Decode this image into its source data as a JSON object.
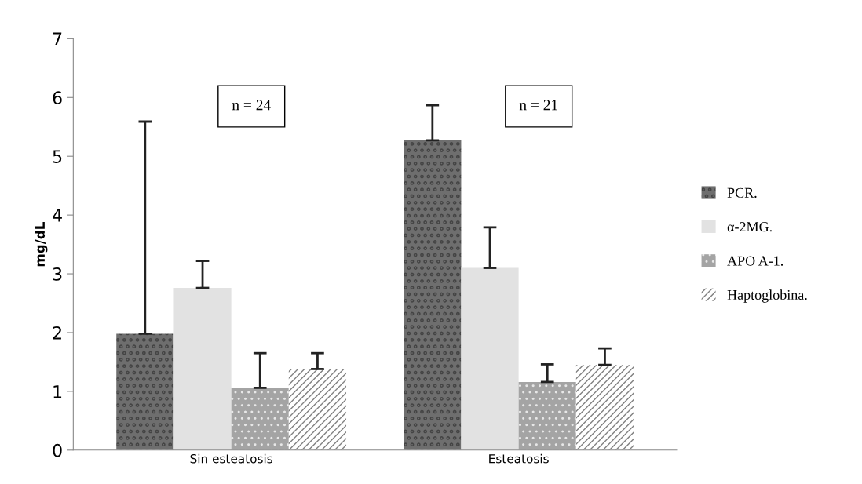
{
  "chart_data": {
    "type": "bar",
    "ylabel": "mg/dL",
    "categories": [
      "Sin esteatosis",
      "Esteatosis"
    ],
    "series": [
      {
        "name": "PCR.",
        "color": "#6e6e6e",
        "values": [
          1.98,
          5.27
        ],
        "errors": [
          [
            1.98,
            5.59
          ],
          [
            5.27,
            5.87
          ]
        ]
      },
      {
        "name": "α-2MG.",
        "color": "#e2e2e2",
        "values": [
          2.76,
          3.1
        ],
        "errors": [
          [
            2.76,
            3.22
          ],
          [
            3.1,
            3.79
          ]
        ]
      },
      {
        "name": "APO A-1.",
        "color": "#a4a4a4",
        "values": [
          1.06,
          1.16
        ],
        "errors": [
          [
            1.06,
            1.65
          ],
          [
            1.16,
            1.46
          ]
        ]
      },
      {
        "name": "Haptoglobina.",
        "color": "#ffffff",
        "values": [
          1.38,
          1.45
        ],
        "errors": [
          [
            1.38,
            1.65
          ],
          [
            1.45,
            1.73
          ]
        ]
      }
    ],
    "ylim": [
      0,
      7
    ],
    "yticks": [
      0,
      1,
      2,
      3,
      4,
      5,
      6,
      7
    ],
    "grid": false,
    "legend": "right",
    "annotations": [
      "n = 24",
      "n = 21"
    ]
  }
}
